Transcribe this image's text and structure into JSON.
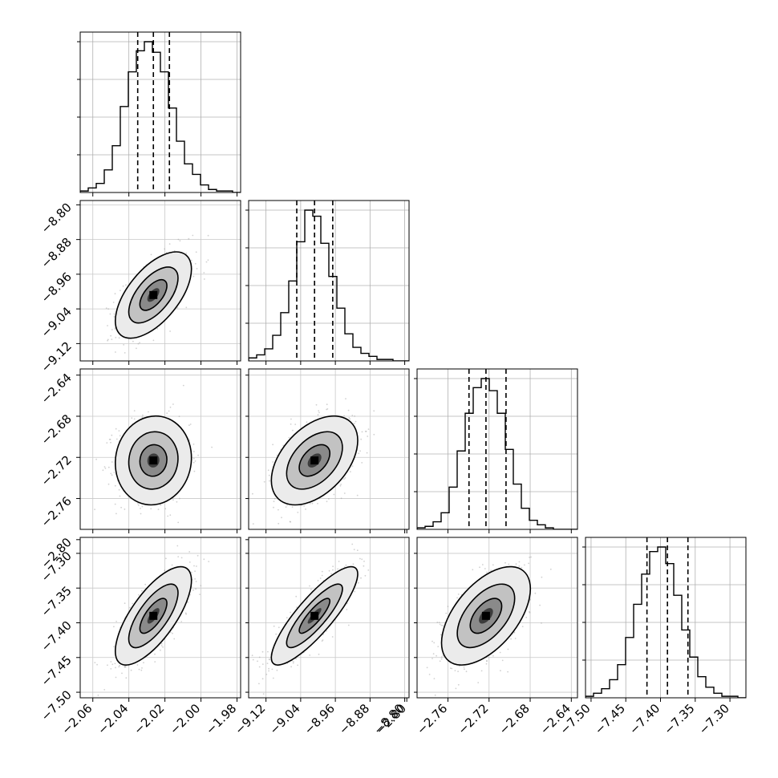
{
  "chart_data": {
    "type": "corner",
    "parameters": [
      {
        "range": [
          -2.067,
          -1.978
        ],
        "ticks": [
          -2.06,
          -2.04,
          -2.02,
          -2.0,
          -1.98
        ],
        "tick_labels": [
          "−2.06",
          "−2.04",
          "−2.02",
          "−2.00",
          "−1.98"
        ],
        "quantiles": [
          -2.0351,
          -2.0264,
          -2.0175
        ],
        "median": -2.0264,
        "histogram": [
          0.01,
          0.03,
          0.06,
          0.15,
          0.31,
          0.57,
          0.8,
          0.94,
          1.0,
          0.93,
          0.8,
          0.56,
          0.34,
          0.19,
          0.12,
          0.05,
          0.02,
          0.01,
          0.01,
          0.0
        ]
      },
      {
        "range": [
          -9.16,
          -8.79
        ],
        "ticks": [
          -9.12,
          -9.04,
          -8.96,
          -8.88,
          -8.8
        ],
        "tick_labels": [
          "−9.12",
          "−9.04",
          "−8.96",
          "−8.88",
          "−8.80"
        ],
        "quantiles": [
          -9.049,
          -9.008,
          -8.966
        ],
        "median": -9.008,
        "histogram": [
          0.02,
          0.04,
          0.08,
          0.17,
          0.32,
          0.53,
          0.79,
          1.0,
          0.96,
          0.78,
          0.56,
          0.35,
          0.18,
          0.09,
          0.05,
          0.03,
          0.01,
          0.01,
          0.0,
          0.0
        ]
      },
      {
        "range": [
          -2.79,
          -2.634
        ],
        "ticks": [
          -2.8,
          -2.76,
          -2.72,
          -2.68,
          -2.64
        ],
        "tick_labels": [
          "−2.80",
          "−2.76",
          "−2.72",
          "−2.68",
          "−2.64"
        ],
        "quantiles": [
          -2.7395,
          -2.723,
          -2.7035
        ],
        "median": -2.723,
        "histogram": [
          0.01,
          0.02,
          0.05,
          0.11,
          0.28,
          0.52,
          0.77,
          0.94,
          1.0,
          0.92,
          0.77,
          0.53,
          0.3,
          0.14,
          0.06,
          0.03,
          0.01,
          0.0,
          0.0,
          0.0
        ]
      },
      {
        "range": [
          -7.508,
          -7.277
        ],
        "ticks": [
          -7.5,
          -7.45,
          -7.4,
          -7.35,
          -7.3
        ],
        "tick_labels": [
          "−7.50",
          "−7.45",
          "−7.40",
          "−7.35",
          "−7.30"
        ],
        "quantiles": [
          -7.4195,
          -7.39,
          -7.3605
        ],
        "median": -7.39,
        "histogram": [
          0.01,
          0.03,
          0.06,
          0.12,
          0.22,
          0.4,
          0.62,
          0.82,
          0.97,
          1.0,
          0.89,
          0.68,
          0.45,
          0.27,
          0.14,
          0.07,
          0.03,
          0.01,
          0.01,
          0.0
        ]
      }
    ],
    "correlations": [
      [
        1.0,
        0.6,
        0.06,
        0.72
      ],
      [
        0.6,
        1.0,
        0.45,
        0.85
      ],
      [
        0.06,
        0.45,
        1.0,
        0.55
      ],
      [
        0.72,
        0.85,
        0.55,
        1.0
      ]
    ],
    "grid": true
  }
}
